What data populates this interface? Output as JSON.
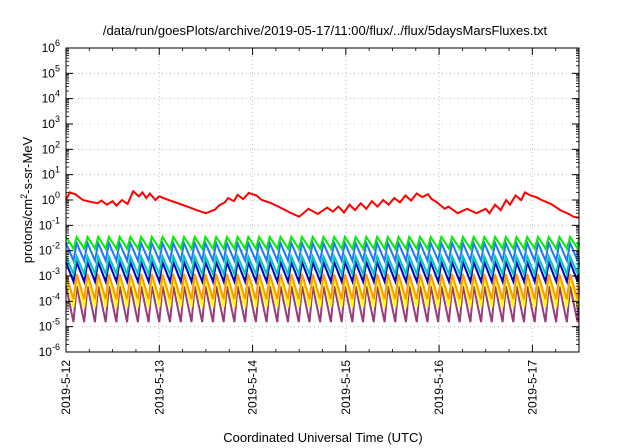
{
  "chart_data": {
    "type": "line",
    "title": "/data/run/goesPlots/archive/2019-05-17/11:00/flux/../flux/5daysMarsFluxes.txt",
    "xlabel": "Coordinated Universal Time (UTC)",
    "ylabel": "protons/cm²-s-sr-MeV",
    "ylabel_base": "protons/cm",
    "ylabel_sup": "2",
    "ylabel_rest": "-s-sr-MeV",
    "y_scale": "log",
    "ylim": [
      1e-06,
      1000000.0
    ],
    "xlim": [
      "2019-05-12",
      "2019-05-17 12:00"
    ],
    "grid": true,
    "legend": "none",
    "x_ticks": [
      "2019-5-12",
      "2019-5-13",
      "2019-5-14",
      "2019-5-15",
      "2019-5-16",
      "2019-5-17"
    ],
    "y_ticks": [
      {
        "base": "10",
        "exp": "-6"
      },
      {
        "base": "10",
        "exp": "-5"
      },
      {
        "base": "10",
        "exp": "-4"
      },
      {
        "base": "10",
        "exp": "-3"
      },
      {
        "base": "10",
        "exp": "-2"
      },
      {
        "base": "10",
        "exp": "-1"
      },
      {
        "base": "10",
        "exp": "0"
      },
      {
        "base": "10",
        "exp": "1"
      },
      {
        "base": "10",
        "exp": "2"
      },
      {
        "base": "10",
        "exp": "3"
      },
      {
        "base": "10",
        "exp": "4"
      },
      {
        "base": "10",
        "exp": "5"
      },
      {
        "base": "10",
        "exp": "6"
      }
    ],
    "series": [
      {
        "color": "#ff0000",
        "x": [
          0.0,
          0.04,
          0.1,
          0.18,
          0.26,
          0.34,
          0.38,
          0.44,
          0.5,
          0.54,
          0.6,
          0.66,
          0.72,
          0.78,
          0.82,
          0.86,
          0.9,
          0.96,
          1.0,
          1.1,
          1.2,
          1.3,
          1.4,
          1.5,
          1.6,
          1.64,
          1.7,
          1.74,
          1.8,
          1.84,
          1.9,
          1.96,
          2.04,
          2.1,
          2.2,
          2.3,
          2.4,
          2.5,
          2.6,
          2.7,
          2.8,
          2.86,
          2.92,
          2.98,
          3.04,
          3.1,
          3.16,
          3.22,
          3.28,
          3.34,
          3.4,
          3.46,
          3.52,
          3.58,
          3.64,
          3.7,
          3.76,
          3.82,
          3.88,
          3.92,
          3.98,
          4.02,
          4.06,
          4.1,
          4.2,
          4.3,
          4.4,
          4.5,
          4.54,
          4.6,
          4.66,
          4.72,
          4.76,
          4.82,
          4.88,
          4.92,
          4.98,
          5.04,
          5.1,
          5.2,
          5.3,
          5.4,
          5.44,
          5.5
        ],
        "y": [
          1.0,
          2.0,
          1.7,
          1.0,
          0.85,
          0.75,
          0.95,
          0.65,
          0.9,
          0.6,
          1.0,
          0.7,
          2.2,
          1.4,
          2.0,
          1.2,
          1.8,
          1.0,
          1.4,
          1.0,
          0.75,
          0.55,
          0.4,
          0.3,
          0.42,
          0.6,
          0.8,
          1.2,
          0.9,
          1.6,
          1.1,
          1.9,
          1.5,
          1.0,
          0.75,
          0.5,
          0.32,
          0.22,
          0.45,
          0.28,
          0.5,
          0.35,
          0.55,
          0.32,
          0.65,
          0.4,
          0.75,
          0.45,
          0.9,
          0.55,
          1.0,
          0.65,
          1.2,
          0.8,
          1.5,
          0.95,
          1.8,
          1.3,
          1.7,
          1.1,
          0.8,
          0.6,
          0.45,
          0.55,
          0.3,
          0.45,
          0.3,
          0.45,
          0.3,
          0.65,
          0.4,
          1.0,
          0.65,
          1.5,
          1.0,
          2.0,
          1.5,
          1.3,
          1.0,
          0.7,
          0.4,
          0.27,
          0.22,
          0.2
        ]
      },
      {
        "color": "#00ee00",
        "sawtooth": {
          "peak": 0.035,
          "trough": 0.012,
          "period": 0.115
        }
      },
      {
        "color": "#1f77ff",
        "sawtooth": {
          "peak": 0.02,
          "trough": 0.004,
          "period": 0.115
        }
      },
      {
        "color": "#00c8b4",
        "sawtooth": {
          "peak": 0.006,
          "trough": 0.0012,
          "period": 0.115
        }
      },
      {
        "color": "#0000c8",
        "sawtooth": {
          "peak": 0.0035,
          "trough": 0.0006,
          "period": 0.115
        }
      },
      {
        "color": "#ff9900",
        "sawtooth": {
          "peak": 0.0012,
          "trough": 0.00012,
          "period": 0.115
        }
      },
      {
        "color": "#ffff00",
        "sawtooth": {
          "peak": 0.0009,
          "trough": 6e-05,
          "period": 0.115
        }
      },
      {
        "color": "#9b3c78",
        "sawtooth": {
          "peak": 0.0004,
          "trough": 1.5e-05,
          "period": 0.115
        }
      }
    ]
  }
}
